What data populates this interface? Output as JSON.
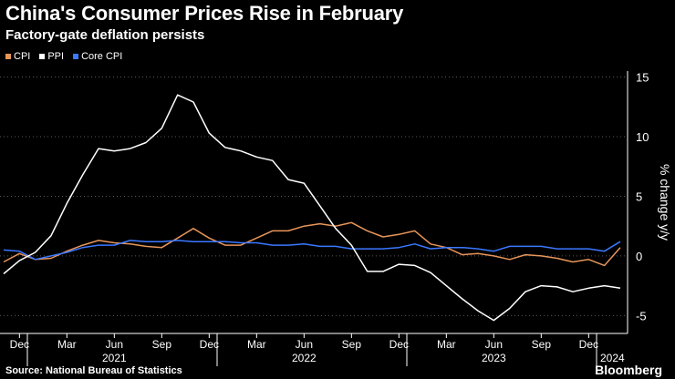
{
  "colors": {
    "cpi": "#e8955a",
    "ppi": "#ffffff",
    "core": "#3b78ff",
    "grid": "#5a5a5a",
    "axis": "#ffffff"
  },
  "source": "Source: National Bureau of Statistics",
  "brand": "Bloomberg",
  "chart_data": {
    "type": "line",
    "title": "China's Consumer Prices Rise in February",
    "subtitle": "Factory-gate deflation persists",
    "ylabel": "% change y/y",
    "ylim": [
      -6.5,
      15.5
    ],
    "yticks": [
      15,
      10,
      5,
      0,
      -5
    ],
    "legend": [
      "CPI",
      "PPI",
      "Core CPI"
    ],
    "legend_position": "top-left",
    "grid": true,
    "month_ticks": [
      "Dec",
      "Mar",
      "Jun",
      "Sep",
      "Dec",
      "Mar",
      "Jun",
      "Sep",
      "Dec",
      "Mar",
      "Jun",
      "Sep",
      "Dec"
    ],
    "month_tick_index": [
      0,
      3,
      6,
      9,
      12,
      15,
      18,
      21,
      24,
      27,
      30,
      33,
      36
    ],
    "years": [
      "2021",
      "2022",
      "2023",
      "2024"
    ],
    "year_tick_index": [
      6,
      18,
      30,
      37.5
    ],
    "x": [
      "2020-11",
      "2020-12",
      "2021-01",
      "2021-02",
      "2021-03",
      "2021-04",
      "2021-05",
      "2021-06",
      "2021-07",
      "2021-08",
      "2021-09",
      "2021-10",
      "2021-11",
      "2021-12",
      "2022-01",
      "2022-02",
      "2022-03",
      "2022-04",
      "2022-05",
      "2022-06",
      "2022-07",
      "2022-08",
      "2022-09",
      "2022-10",
      "2022-11",
      "2022-12",
      "2023-01",
      "2023-02",
      "2023-03",
      "2023-04",
      "2023-05",
      "2023-06",
      "2023-07",
      "2023-08",
      "2023-09",
      "2023-10",
      "2023-11",
      "2023-12",
      "2024-01",
      "2024-02"
    ],
    "series": [
      {
        "name": "CPI",
        "values": [
          -0.5,
          0.2,
          -0.3,
          -0.2,
          0.4,
          0.9,
          1.3,
          1.1,
          1.0,
          0.8,
          0.7,
          1.5,
          2.3,
          1.5,
          0.9,
          0.9,
          1.5,
          2.1,
          2.1,
          2.5,
          2.7,
          2.5,
          2.8,
          2.1,
          1.6,
          1.8,
          2.1,
          1.0,
          0.7,
          0.1,
          0.2,
          0.0,
          -0.3,
          0.1,
          0.0,
          -0.2,
          -0.5,
          -0.3,
          -0.8,
          0.7
        ]
      },
      {
        "name": "PPI",
        "values": [
          -1.5,
          -0.4,
          0.3,
          1.7,
          4.4,
          6.8,
          9.0,
          8.8,
          9.0,
          9.5,
          10.7,
          13.5,
          12.9,
          10.3,
          9.1,
          8.8,
          8.3,
          8.0,
          6.4,
          6.1,
          4.2,
          2.3,
          0.9,
          -1.3,
          -1.3,
          -0.7,
          -0.8,
          -1.4,
          -2.5,
          -3.6,
          -4.6,
          -5.4,
          -4.4,
          -3.0,
          -2.5,
          -2.6,
          -3.0,
          -2.7,
          -2.5,
          -2.7
        ]
      },
      {
        "name": "Core CPI",
        "values": [
          0.5,
          0.4,
          -0.3,
          0.0,
          0.3,
          0.7,
          0.9,
          0.9,
          1.3,
          1.2,
          1.2,
          1.3,
          1.2,
          1.2,
          1.2,
          1.1,
          1.1,
          0.9,
          0.9,
          1.0,
          0.8,
          0.8,
          0.6,
          0.6,
          0.6,
          0.7,
          1.0,
          0.6,
          0.7,
          0.7,
          0.6,
          0.4,
          0.8,
          0.8,
          0.8,
          0.6,
          0.6,
          0.6,
          0.4,
          1.2
        ]
      }
    ]
  }
}
